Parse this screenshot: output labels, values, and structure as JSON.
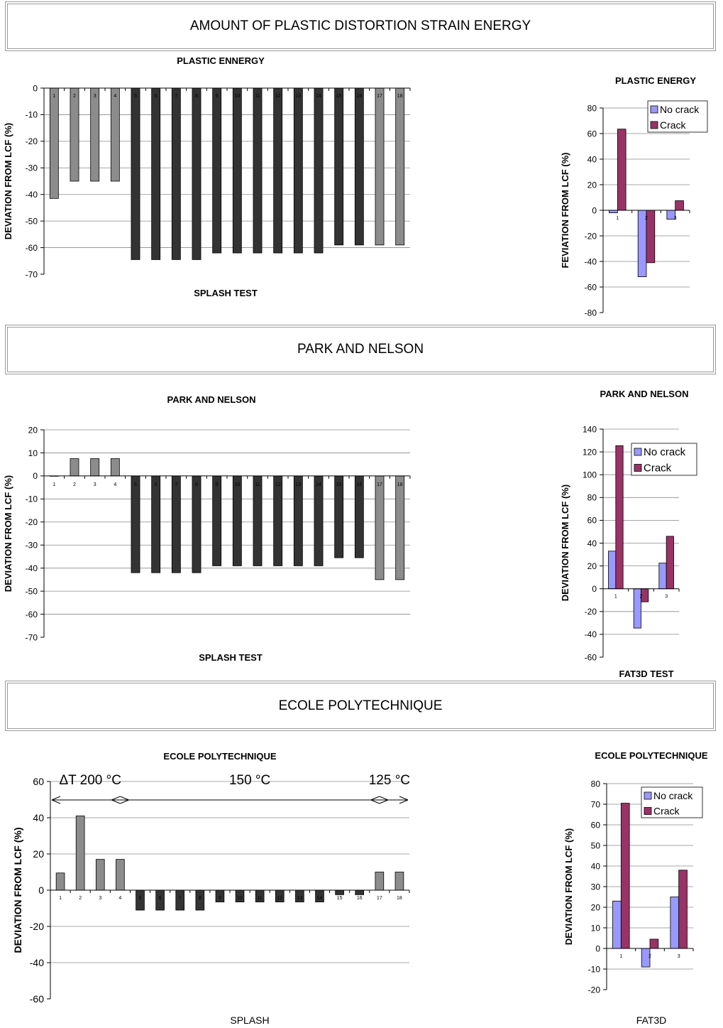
{
  "banners": [
    "AMOUNT OF PLASTIC DISTORTION STRAIN ENERGY",
    "PARK AND NELSON",
    "ECOLE POLYTECHNIQUE"
  ],
  "colors": {
    "gray_bar": "#8c8c8c",
    "dark_bar": "#333333",
    "no_crack": "#9999ff",
    "crack": "#993366"
  },
  "chart_data": [
    {
      "id": "c1",
      "type": "bar",
      "title": "PLASTIC ENNERGY",
      "xlabel": "SPLASH TEST",
      "ylabel": "DEVIATION FROM LCF  (%)",
      "ylim": [
        -70,
        0
      ],
      "yticks": [
        0,
        -10,
        -20,
        -30,
        -40,
        -50,
        -60,
        -70
      ],
      "grid": true,
      "categories": [
        "1",
        "2",
        "3",
        "4",
        "5",
        "6",
        "7",
        "8",
        "9",
        "10",
        "11",
        "12",
        "13",
        "14",
        "15",
        "16",
        "17",
        "18"
      ],
      "values": [
        -41.5,
        -35,
        -35,
        -35,
        -64.5,
        -64.5,
        -64.5,
        -64.5,
        -62,
        -62,
        -62,
        -62,
        -62,
        -62,
        -59,
        -59,
        -59,
        -59
      ],
      "bar_styles": [
        "gray",
        "gray",
        "gray",
        "gray",
        "dark",
        "dark",
        "dark",
        "dark",
        "dark",
        "dark",
        "dark",
        "dark",
        "dark",
        "dark",
        "dark",
        "dark",
        "gray",
        "gray"
      ]
    },
    {
      "id": "c2",
      "type": "bar",
      "title": "PLASTIC ENERGY",
      "xlabel": "",
      "ylabel": "FEVIATION FROM LCF  (%)",
      "ylim": [
        -80,
        80
      ],
      "yticks": [
        80,
        60,
        40,
        20,
        0,
        -20,
        -40,
        -60,
        -80
      ],
      "grid": true,
      "legend": "top-right",
      "categories": [
        "1",
        "2",
        "3"
      ],
      "series": [
        {
          "name": "No crack",
          "values": [
            -2,
            -52,
            -7
          ]
        },
        {
          "name": "Crack",
          "values": [
            63.5,
            -41,
            7.5
          ]
        }
      ]
    },
    {
      "id": "c3",
      "type": "bar",
      "title": "PARK AND NELSON",
      "xlabel": "SPLASH TEST",
      "ylabel": "DEVIATION FROM LCF  (%)",
      "ylim": [
        -70,
        20
      ],
      "yticks": [
        20,
        10,
        0,
        -10,
        -20,
        -30,
        -40,
        -50,
        -60,
        -70
      ],
      "grid": true,
      "categories": [
        "1",
        "2",
        "3",
        "4",
        "5",
        "6",
        "7",
        "8",
        "9",
        "10",
        "11",
        "12",
        "13",
        "14",
        "15",
        "16",
        "17",
        "18"
      ],
      "values": [
        0,
        7.5,
        7.5,
        7.5,
        -42,
        -42,
        -42,
        -42,
        -39,
        -39,
        -39,
        -39,
        -39,
        -39,
        -35.5,
        -35.5,
        -45,
        -45
      ],
      "bar_styles": [
        "gray",
        "gray",
        "gray",
        "gray",
        "dark",
        "dark",
        "dark",
        "dark",
        "dark",
        "dark",
        "dark",
        "dark",
        "dark",
        "dark",
        "dark",
        "dark",
        "gray",
        "gray"
      ]
    },
    {
      "id": "c4",
      "type": "bar",
      "title": "PARK AND NELSON",
      "xlabel": "FAT3D TEST",
      "ylabel": "DEVIATION FROM LCF  (%)",
      "ylim": [
        -60,
        140
      ],
      "yticks": [
        140,
        120,
        100,
        80,
        60,
        40,
        20,
        0,
        -20,
        -40,
        -60
      ],
      "grid": true,
      "legend": "top-right",
      "categories": [
        "1",
        "2",
        "3"
      ],
      "series": [
        {
          "name": "No crack",
          "values": [
            33,
            -34.5,
            22.5
          ]
        },
        {
          "name": "Crack",
          "values": [
            125.5,
            -11.5,
            46
          ]
        }
      ]
    },
    {
      "id": "c5",
      "type": "bar",
      "title": "ECOLE POLYTECHNIQUE",
      "xlabel": "SPLASH",
      "ylabel": "DEVIATION FROM LCF  (%)",
      "ylim": [
        -60,
        60
      ],
      "yticks": [
        60,
        40,
        20,
        0,
        -20,
        -40,
        -60
      ],
      "grid": true,
      "categories": [
        "1",
        "2",
        "3",
        "4",
        "5",
        "6",
        "7",
        "8",
        "9",
        "10",
        "11",
        "12",
        "13",
        "14",
        "15",
        "16",
        "17",
        "18"
      ],
      "values": [
        9.5,
        41,
        17,
        17,
        -11,
        -11,
        -11,
        -11,
        -6.5,
        -6.5,
        -6.5,
        -6.5,
        -6.5,
        -6.5,
        -2.5,
        -2.5,
        10,
        10
      ],
      "bar_styles": [
        "gray",
        "gray",
        "gray",
        "gray",
        "dark",
        "dark",
        "dark",
        "dark",
        "dark",
        "dark",
        "dark",
        "dark",
        "dark",
        "dark",
        "dark",
        "dark",
        "gray",
        "gray"
      ],
      "annotations": [
        {
          "text": "ΔT 200 °C",
          "from_cat": 1,
          "to_cat": 4
        },
        {
          "text": "150 °C",
          "from_cat": 4,
          "to_cat": 17
        },
        {
          "text": "125 °C",
          "from_cat": 17,
          "to_cat": 18
        }
      ]
    },
    {
      "id": "c6",
      "type": "bar",
      "title": "ECOLE POLYTECHNIQUE",
      "xlabel": "FAT3D",
      "ylabel": "DEVIATION FROM LCF  (%)",
      "ylim": [
        -20,
        80
      ],
      "yticks": [
        80,
        70,
        60,
        50,
        40,
        30,
        20,
        10,
        0,
        -10,
        -20
      ],
      "grid": true,
      "legend": "top-right",
      "categories": [
        "1",
        "2",
        "3"
      ],
      "series": [
        {
          "name": "No crack",
          "values": [
            23,
            -9,
            25
          ]
        },
        {
          "name": "Crack",
          "values": [
            70.5,
            4.5,
            38
          ]
        }
      ]
    }
  ]
}
